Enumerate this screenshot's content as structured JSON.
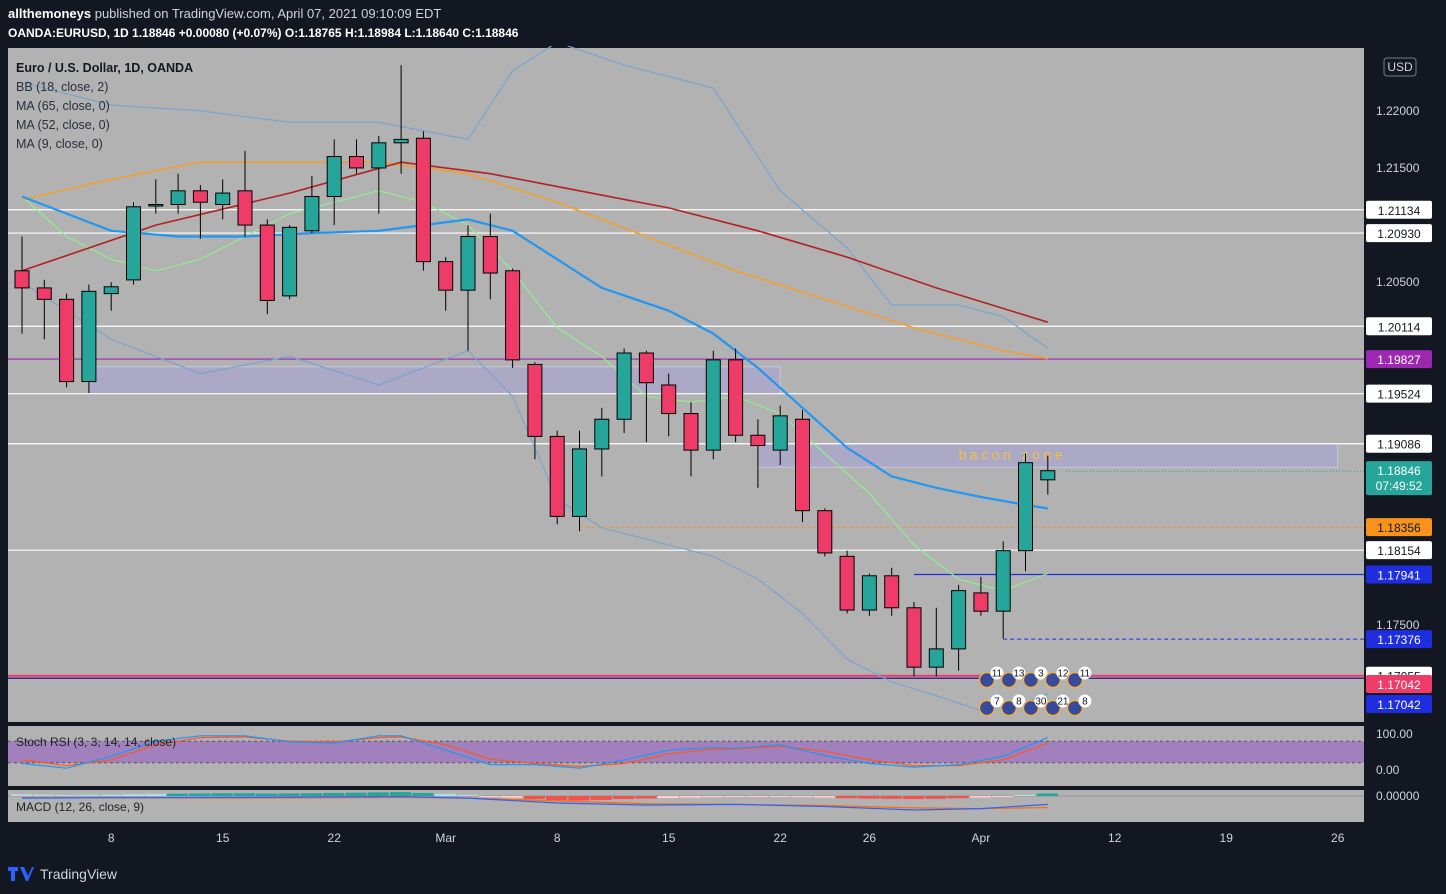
{
  "header": {
    "publisher": "allthemoneys",
    "published_text": "published on TradingView.com, April 07, 2021 09:10:09 EDT",
    "symbol": "OANDA:EURUSD, 1D",
    "last": "1.18846",
    "change": "+0.00080 (+0.07%)",
    "o_label": "O:",
    "o": "1.18765",
    "h_label": "H:",
    "h": "1.18984",
    "l_label": "L:",
    "l": "1.18640",
    "c_label": "C:",
    "c": "1.18846"
  },
  "legend": [
    "Euro / U.S. Dollar, 1D, OANDA",
    "BB (18, close, 2)",
    "MA (65, close, 0)",
    "MA (52, close, 0)",
    "MA (9, close, 0)"
  ],
  "currency_button": "USD",
  "annotation": "bacon zone",
  "footer": {
    "brand": "TradingView"
  },
  "colors": {
    "bg": "#131722",
    "pane": "#b2b2b2",
    "up": "#26a69a",
    "down": "#ef3b68",
    "ma65": "#b22222",
    "ma52": "#f0a030",
    "ma9": "#90ee90",
    "mid": "#2196f3"
  },
  "chart_data": {
    "type": "candlestick",
    "symbol": "EURUSD",
    "ylim": [
      1.1665,
      1.2255
    ],
    "y_ticks": [
      "1.22000",
      "1.21500",
      "1.20500",
      "1.17500"
    ],
    "x_tick_labels": [
      {
        "label": "8",
        "index": 4
      },
      {
        "label": "15",
        "index": 9
      },
      {
        "label": "22",
        "index": 14
      },
      {
        "label": "Mar",
        "index": 19
      },
      {
        "label": "8",
        "index": 24
      },
      {
        "label": "15",
        "index": 29
      },
      {
        "label": "22",
        "index": 34
      },
      {
        "label": "26",
        "index": 38
      },
      {
        "label": "Apr",
        "index": 43
      },
      {
        "label": "12",
        "index": 49
      },
      {
        "label": "19",
        "index": 54
      },
      {
        "label": "26",
        "index": 59
      }
    ],
    "candles": [
      [
        1.206,
        1.209,
        1.2005,
        1.2045
      ],
      [
        1.2045,
        1.2052,
        1.2,
        1.2035
      ],
      [
        1.2035,
        1.204,
        1.1958,
        1.1963
      ],
      [
        1.1963,
        1.2048,
        1.1953,
        1.2042
      ],
      [
        1.204,
        1.205,
        1.2025,
        1.2046
      ],
      [
        1.2052,
        1.212,
        1.2048,
        1.2116
      ],
      [
        1.2118,
        1.214,
        1.211,
        1.2118
      ],
      [
        1.2118,
        1.2145,
        1.211,
        1.213
      ],
      [
        1.213,
        1.2135,
        1.2088,
        1.212
      ],
      [
        1.2118,
        1.214,
        1.2105,
        1.2128
      ],
      [
        1.213,
        1.2165,
        1.209,
        1.21
      ],
      [
        1.21,
        1.2105,
        1.2022,
        1.2034
      ],
      [
        1.2038,
        1.21,
        1.2035,
        1.2098
      ],
      [
        1.2095,
        1.2143,
        1.2093,
        1.2125
      ],
      [
        1.2125,
        1.2175,
        1.21,
        1.216
      ],
      [
        1.216,
        1.2175,
        1.2145,
        1.215
      ],
      [
        1.215,
        1.2178,
        1.211,
        1.2172
      ],
      [
        1.2172,
        1.224,
        1.2145,
        1.2175
      ],
      [
        1.2176,
        1.2182,
        1.206,
        1.2068
      ],
      [
        1.2068,
        1.2072,
        1.2025,
        1.2043
      ],
      [
        1.2043,
        1.21,
        1.199,
        1.209
      ],
      [
        1.209,
        1.211,
        1.2035,
        1.2058
      ],
      [
        1.206,
        1.2062,
        1.1975,
        1.1982
      ],
      [
        1.1978,
        1.198,
        1.1895,
        1.1915
      ],
      [
        1.1915,
        1.192,
        1.1838,
        1.1845
      ],
      [
        1.1845,
        1.192,
        1.1832,
        1.1904
      ],
      [
        1.1904,
        1.194,
        1.188,
        1.193
      ],
      [
        1.193,
        1.1992,
        1.1918,
        1.1988
      ],
      [
        1.1988,
        1.199,
        1.191,
        1.1962
      ],
      [
        1.196,
        1.197,
        1.1915,
        1.1935
      ],
      [
        1.1935,
        1.1945,
        1.188,
        1.1903
      ],
      [
        1.1903,
        1.199,
        1.1895,
        1.1982
      ],
      [
        1.1982,
        1.1992,
        1.191,
        1.1916
      ],
      [
        1.1916,
        1.193,
        1.187,
        1.1907
      ],
      [
        1.1903,
        1.1942,
        1.189,
        1.1933
      ],
      [
        1.193,
        1.1938,
        1.184,
        1.185
      ],
      [
        1.185,
        1.1852,
        1.181,
        1.1813
      ],
      [
        1.181,
        1.1815,
        1.176,
        1.1763
      ],
      [
        1.1763,
        1.1795,
        1.1758,
        1.1793
      ],
      [
        1.1793,
        1.18,
        1.1758,
        1.1765
      ],
      [
        1.1765,
        1.177,
        1.1705,
        1.1713
      ],
      [
        1.1713,
        1.1765,
        1.1705,
        1.1729
      ],
      [
        1.1729,
        1.1785,
        1.171,
        1.178
      ],
      [
        1.1778,
        1.1792,
        1.1758,
        1.1762
      ],
      [
        1.1762,
        1.1823,
        1.1738,
        1.1815
      ],
      [
        1.1815,
        1.19,
        1.1797,
        1.1892
      ],
      [
        1.1877,
        1.1898,
        1.1864,
        1.1885
      ]
    ],
    "ma65": [
      [
        0,
        1.206
      ],
      [
        6,
        1.21
      ],
      [
        12,
        1.2128
      ],
      [
        17,
        1.2155
      ],
      [
        21,
        1.2145
      ],
      [
        25,
        1.213
      ],
      [
        29,
        1.2115
      ],
      [
        33,
        1.2095
      ],
      [
        37,
        1.2072
      ],
      [
        41,
        1.2045
      ],
      [
        46,
        1.2015
      ]
    ],
    "ma52": [
      [
        0,
        1.2122
      ],
      [
        4,
        1.214
      ],
      [
        8,
        1.2155
      ],
      [
        12,
        1.2155
      ],
      [
        16,
        1.2155
      ],
      [
        20,
        1.2145
      ],
      [
        24,
        1.212
      ],
      [
        28,
        1.209
      ],
      [
        32,
        1.206
      ],
      [
        36,
        1.2035
      ],
      [
        40,
        1.201
      ],
      [
        44,
        1.199
      ],
      [
        46,
        1.1983
      ]
    ],
    "bb_mid": [
      [
        0,
        1.2125
      ],
      [
        2,
        1.211
      ],
      [
        4,
        1.2095
      ],
      [
        7,
        1.209
      ],
      [
        10,
        1.209
      ],
      [
        13,
        1.2093
      ],
      [
        16,
        1.2095
      ],
      [
        18,
        1.21
      ],
      [
        20,
        1.2105
      ],
      [
        22,
        1.2095
      ],
      [
        24,
        1.207
      ],
      [
        26,
        1.2045
      ],
      [
        29,
        1.2025
      ],
      [
        31,
        1.2005
      ],
      [
        33,
        1.1975
      ],
      [
        35,
        1.194
      ],
      [
        37,
        1.1905
      ],
      [
        39,
        1.188
      ],
      [
        41,
        1.187
      ],
      [
        43,
        1.1862
      ],
      [
        45,
        1.1855
      ],
      [
        46,
        1.1852
      ]
    ],
    "bb_upper": [
      [
        0,
        1.2225
      ],
      [
        4,
        1.2205
      ],
      [
        8,
        1.22
      ],
      [
        12,
        1.219
      ],
      [
        16,
        1.219
      ],
      [
        20,
        1.2175
      ],
      [
        22,
        1.2235
      ],
      [
        24,
        1.226
      ],
      [
        27,
        1.224
      ],
      [
        31,
        1.222
      ],
      [
        34,
        1.213
      ],
      [
        37,
        1.208
      ],
      [
        39,
        1.203
      ],
      [
        42,
        1.203
      ],
      [
        44,
        1.202
      ],
      [
        46,
        1.1992
      ]
    ],
    "bb_lower": [
      [
        0,
        1.205
      ],
      [
        4,
        1.2
      ],
      [
        8,
        1.197
      ],
      [
        12,
        1.1985
      ],
      [
        16,
        1.196
      ],
      [
        20,
        1.199
      ],
      [
        22,
        1.195
      ],
      [
        24,
        1.186
      ],
      [
        26,
        1.1835
      ],
      [
        29,
        1.182
      ],
      [
        31,
        1.181
      ],
      [
        33,
        1.179
      ],
      [
        35,
        1.176
      ],
      [
        37,
        1.172
      ],
      [
        39,
        1.17
      ],
      [
        41,
        1.1688
      ],
      [
        43,
        1.1675
      ],
      [
        45,
        1.1682
      ],
      [
        46,
        1.169
      ]
    ],
    "ma9": [
      [
        0,
        1.2125
      ],
      [
        2,
        1.209
      ],
      [
        4,
        1.207
      ],
      [
        6,
        1.206
      ],
      [
        8,
        1.207
      ],
      [
        10,
        1.209
      ],
      [
        12,
        1.211
      ],
      [
        14,
        1.212
      ],
      [
        16,
        1.213
      ],
      [
        18,
        1.212
      ],
      [
        20,
        1.21
      ],
      [
        22,
        1.206
      ],
      [
        24,
        1.201
      ],
      [
        26,
        1.1985
      ],
      [
        28,
        1.195
      ],
      [
        30,
        1.1945
      ],
      [
        32,
        1.195
      ],
      [
        34,
        1.1935
      ],
      [
        36,
        1.19
      ],
      [
        38,
        1.1865
      ],
      [
        40,
        1.182
      ],
      [
        42,
        1.179
      ],
      [
        44,
        1.178
      ],
      [
        46,
        1.1795
      ]
    ],
    "levels": [
      {
        "price": "1.21134",
        "value": 1.21134,
        "style": "white-line"
      },
      {
        "price": "1.20930",
        "value": 1.2093,
        "style": "white-line"
      },
      {
        "price": "1.20114",
        "value": 1.20114,
        "style": "white-line"
      },
      {
        "price": "1.19827",
        "value": 1.19827,
        "style": "purple-line"
      },
      {
        "price": "1.19524",
        "value": 1.19524,
        "style": "white-line"
      },
      {
        "price": "1.19086",
        "value": 1.19086,
        "style": "white-line"
      },
      {
        "price": "1.18808",
        "value": 1.18808,
        "style": "axis-only"
      },
      {
        "price": "1.18356",
        "value": 1.18356,
        "style": "orange-dashed"
      },
      {
        "price": "1.18154",
        "value": 1.18154,
        "style": "white-line"
      },
      {
        "price": "1.17941",
        "value": 1.17941,
        "style": "blue-line"
      },
      {
        "price": "1.17376",
        "value": 1.17376,
        "style": "blue-dashed"
      },
      {
        "price": "1.17055",
        "value": 1.17055,
        "style": "red-line"
      }
    ],
    "last_price_label": "1.18846",
    "countdown": "07:49:52",
    "badges": [
      {
        "price": "1.17042",
        "color": "#ef3b68"
      },
      {
        "price": "1.17042",
        "color": "#1e2ddd"
      }
    ],
    "zones": [
      {
        "from_index": 3,
        "to_index": 34,
        "low": 1.19524,
        "high": 1.1976
      },
      {
        "from_index": 33,
        "to_index": 59,
        "low": 1.1888,
        "high": 1.19086
      }
    ],
    "events_top": [
      "11",
      "13",
      "3",
      "12",
      "11"
    ],
    "events_bottom": [
      "7",
      "8",
      "30",
      "21",
      "8"
    ],
    "stoch_rsi": {
      "label": "Stoch RSI (3, 3, 14, 14, close)",
      "ticks": [
        "100.00",
        "0.00"
      ],
      "k": [
        [
          0,
          18
        ],
        [
          2,
          5
        ],
        [
          4,
          38
        ],
        [
          6,
          80
        ],
        [
          8,
          95
        ],
        [
          10,
          95
        ],
        [
          12,
          78
        ],
        [
          14,
          75
        ],
        [
          16,
          95
        ],
        [
          17,
          95
        ],
        [
          19,
          55
        ],
        [
          21,
          15
        ],
        [
          23,
          15
        ],
        [
          25,
          5
        ],
        [
          27,
          28
        ],
        [
          29,
          55
        ],
        [
          31,
          62
        ],
        [
          32,
          60
        ],
        [
          34,
          70
        ],
        [
          36,
          40
        ],
        [
          38,
          18
        ],
        [
          40,
          8
        ],
        [
          42,
          15
        ],
        [
          44,
          38
        ],
        [
          46,
          90
        ]
      ],
      "d": [
        [
          0,
          28
        ],
        [
          2,
          12
        ],
        [
          4,
          28
        ],
        [
          6,
          70
        ],
        [
          8,
          90
        ],
        [
          10,
          92
        ],
        [
          12,
          80
        ],
        [
          14,
          78
        ],
        [
          16,
          90
        ],
        [
          17,
          92
        ],
        [
          19,
          70
        ],
        [
          21,
          30
        ],
        [
          23,
          18
        ],
        [
          25,
          10
        ],
        [
          27,
          18
        ],
        [
          29,
          45
        ],
        [
          31,
          58
        ],
        [
          32,
          58
        ],
        [
          34,
          66
        ],
        [
          36,
          52
        ],
        [
          38,
          28
        ],
        [
          40,
          12
        ],
        [
          42,
          12
        ],
        [
          44,
          28
        ],
        [
          46,
          75
        ]
      ]
    },
    "macd": {
      "label": "MACD (12, 26, close, 9)",
      "tick": "0.00000",
      "hist": [
        1.2,
        1.0,
        0.8,
        0.9,
        1.0,
        1.3,
        1.5,
        1.7,
        1.8,
        2.0,
        2.0,
        1.8,
        1.9,
        2.0,
        2.2,
        2.4,
        2.6,
        2.8,
        2.2,
        1.5,
        0.8,
        -0.3,
        -1.2,
        -2.2,
        -3.0,
        -3.2,
        -2.8,
        -2.2,
        -1.8,
        -1.5,
        -1.2,
        -0.9,
        -0.7,
        -0.6,
        -0.5,
        -0.8,
        -1.2,
        -1.6,
        -1.9,
        -2.0,
        -2.2,
        -2.0,
        -1.6,
        -1.1,
        -0.4,
        0.8,
        1.8
      ],
      "macd_line": [
        [
          0,
          -1.5
        ],
        [
          4,
          -1.2
        ],
        [
          10,
          -1.0
        ],
        [
          17,
          -0.5
        ],
        [
          20,
          -1.5
        ],
        [
          24,
          -5.0
        ],
        [
          28,
          -6.5
        ],
        [
          32,
          -6.0
        ],
        [
          36,
          -7.5
        ],
        [
          40,
          -10.0
        ],
        [
          43,
          -9.0
        ],
        [
          46,
          -6.0
        ]
      ],
      "signal_line": [
        [
          0,
          -1.2
        ],
        [
          4,
          -1.3
        ],
        [
          10,
          -1.4
        ],
        [
          17,
          -1.0
        ],
        [
          20,
          -1.5
        ],
        [
          24,
          -3.5
        ],
        [
          28,
          -5.5
        ],
        [
          32,
          -6.0
        ],
        [
          36,
          -6.8
        ],
        [
          40,
          -8.5
        ],
        [
          43,
          -9.0
        ],
        [
          46,
          -8.2
        ]
      ]
    }
  }
}
